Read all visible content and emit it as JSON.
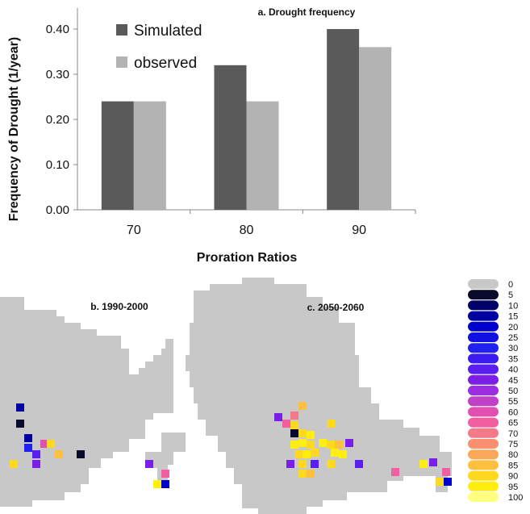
{
  "chart_data": {
    "type": "bar",
    "title": "a. Drought frequency",
    "xlabel": "Proration Ratios",
    "ylabel": "Frequency of Drought (1/year)",
    "categories": [
      "70",
      "80",
      "90"
    ],
    "series": [
      {
        "name": "Simulated",
        "values": [
          0.24,
          0.32,
          0.4
        ],
        "color": "#5a5a5a"
      },
      {
        "name": "observed",
        "values": [
          0.24,
          0.24,
          0.36
        ],
        "color": "#b3b3b3"
      }
    ],
    "ylim": [
      0,
      0.45
    ],
    "yticks": [
      "0.00",
      "0.10",
      "0.20",
      "0.30",
      "0.40"
    ],
    "grid": false,
    "legend_position": "top-left"
  },
  "maps": {
    "panel_b_title": "b. 1990-2000",
    "panel_c_title": "c. 2050-2060",
    "base_color": "#c8c8c8",
    "legend": [
      {
        "label": "0",
        "color": "#c8c8c8"
      },
      {
        "label": "5",
        "color": "#0a0a2a"
      },
      {
        "label": "10",
        "color": "#000066"
      },
      {
        "label": "15",
        "color": "#0000a0"
      },
      {
        "label": "20",
        "color": "#0000cc"
      },
      {
        "label": "25",
        "color": "#1010e0"
      },
      {
        "label": "30",
        "color": "#2020f0"
      },
      {
        "label": "35",
        "color": "#3a1cf0"
      },
      {
        "label": "40",
        "color": "#5a1ef0"
      },
      {
        "label": "45",
        "color": "#7a1ee8"
      },
      {
        "label": "50",
        "color": "#9a2ee0"
      },
      {
        "label": "55",
        "color": "#c040c8"
      },
      {
        "label": "60",
        "color": "#e050b0"
      },
      {
        "label": "65",
        "color": "#f060a0"
      },
      {
        "label": "70",
        "color": "#f47a8a"
      },
      {
        "label": "75",
        "color": "#f89070"
      },
      {
        "label": "80",
        "color": "#fca85a"
      },
      {
        "label": "85",
        "color": "#ffc040"
      },
      {
        "label": "90",
        "color": "#ffd820"
      },
      {
        "label": "95",
        "color": "#ffee10"
      },
      {
        "label": "100",
        "color": "#ffff80"
      }
    ]
  }
}
